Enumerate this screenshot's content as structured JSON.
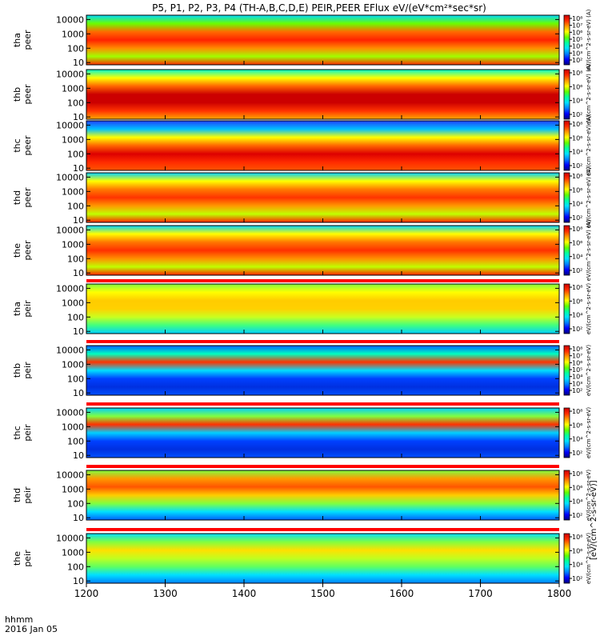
{
  "title": "P5, P1, P2, P3, P4 (TH-A,B,C,D,E) PEIR,PEER EFlux eV/(eV*cm²*sec*sr)",
  "footer": {
    "label1": "hhmm",
    "label2": "2016 Jan 05"
  },
  "colorbar_unit_label": "[eV/(cm^2-s-sr-eV)]",
  "colorbar_axis_texts": [
    "eV/(cm^2-s-sr-eV) (A)",
    "eV/(cm^2-s-sr-eV) (A)",
    "eV/(cm^2-s-sr-eV) (A)",
    "eV/(cm^2-s-sr-eV) (A)",
    "eV/(cm^2-s-sr-eV) (A)",
    "eV/(cm^2-s-sr-eV)",
    "eV/(cm^2-s-sr-eV)",
    "eV/(cm^2-s-sr-eV)",
    "eV/(cm^2-s-sr-eV)",
    "eV/(cm^2-s-sr-eV)"
  ],
  "colors": {
    "colormap": [
      "#000080",
      "#0000ff",
      "#0080ff",
      "#00e0ff",
      "#00ffa0",
      "#60ff00",
      "#ffff00",
      "#ff9900",
      "#ff2a00",
      "#cc0000"
    ]
  },
  "chart_data": {
    "type": "heatmap",
    "x_ticks": [
      "1200",
      "1300",
      "1400",
      "1500",
      "1600",
      "1700",
      "1800"
    ],
    "xlim": [
      1200,
      1800
    ],
    "ylim": [
      7,
      20000
    ],
    "y_scale": "log",
    "panels": [
      {
        "id": "tha_peer",
        "label_top": "tha",
        "label_bottom": "peer",
        "yticks": [
          "10000",
          "1000",
          "100",
          "10"
        ],
        "cbar_ticks": [
          "10⁸",
          "10⁷",
          "10⁶",
          "10⁵",
          "10⁴",
          "10³",
          "10²"
        ]
      },
      {
        "id": "thb_peer",
        "label_top": "thb",
        "label_bottom": "peer",
        "yticks": [
          "10000",
          "1000",
          "100",
          "10"
        ],
        "cbar_ticks": [
          "10⁸",
          "10⁶",
          "10⁴",
          "10²"
        ]
      },
      {
        "id": "thc_peer",
        "label_top": "thc",
        "label_bottom": "peer",
        "yticks": [
          "10000",
          "1000",
          "100",
          "10"
        ],
        "cbar_ticks": [
          "10⁸",
          "10⁶",
          "10⁴",
          "10²"
        ]
      },
      {
        "id": "thd_peer",
        "label_top": "thd",
        "label_bottom": "peer",
        "yticks": [
          "10000",
          "1000",
          "100",
          "10"
        ],
        "cbar_ticks": [
          "10⁸",
          "10⁶",
          "10⁴",
          "10²"
        ]
      },
      {
        "id": "the_peer",
        "label_top": "the",
        "label_bottom": "peer",
        "yticks": [
          "10000",
          "1000",
          "100",
          "10"
        ],
        "cbar_ticks": [
          "10⁸",
          "10⁶",
          "10⁴",
          "10²"
        ]
      },
      {
        "id": "tha_peir",
        "label_top": "tha",
        "label_bottom": "peir",
        "yticks": [
          "10000",
          "1000",
          "100",
          "10"
        ],
        "cbar_ticks": [
          "10⁸",
          "10⁶",
          "10⁴",
          "10²"
        ]
      },
      {
        "id": "thb_peir",
        "label_top": "thb",
        "label_bottom": "peir",
        "yticks": [
          "10000",
          "1000",
          "100",
          "10"
        ],
        "cbar_ticks": [
          "10⁸",
          "10⁷",
          "10⁶",
          "10⁵",
          "10⁴",
          "10³",
          "10²"
        ]
      },
      {
        "id": "thc_peir",
        "label_top": "thc",
        "label_bottom": "peir",
        "yticks": [
          "10000",
          "1000",
          "100",
          "10"
        ],
        "cbar_ticks": [
          "10⁸",
          "10⁶",
          "10⁴",
          "10²"
        ]
      },
      {
        "id": "thd_peir",
        "label_top": "thd",
        "label_bottom": "peir",
        "yticks": [
          "10000",
          "1000",
          "100",
          "10"
        ],
        "cbar_ticks": [
          "10⁸",
          "10⁶",
          "10⁴",
          "10²"
        ]
      },
      {
        "id": "the_peir",
        "label_top": "the",
        "label_bottom": "peir",
        "yticks": [
          "10000",
          "1000",
          "100",
          "10"
        ],
        "cbar_ticks": [
          "10⁸",
          "10⁶",
          "10⁴",
          "10²"
        ]
      }
    ]
  }
}
